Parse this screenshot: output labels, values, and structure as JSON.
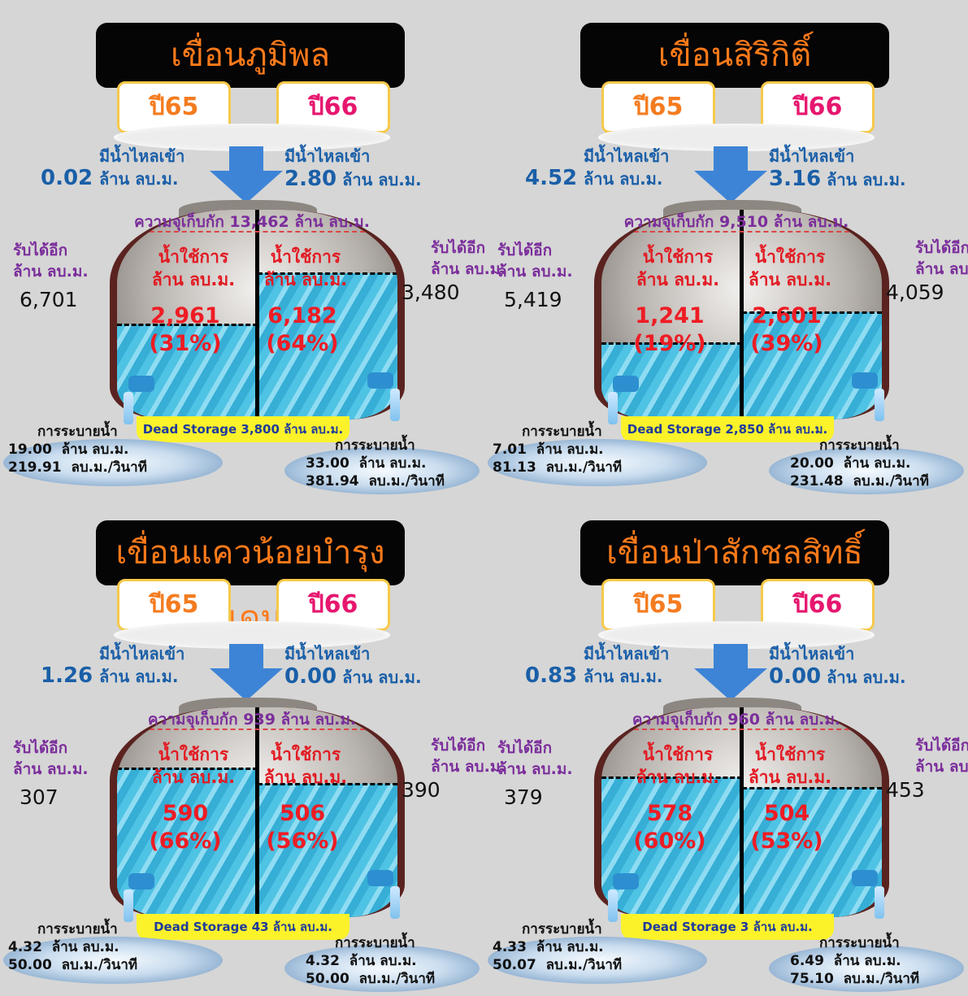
{
  "dams": [
    {
      "name": "เขื่อนภูมิพล",
      "year_left": "ปี65",
      "year_right": "ปี66",
      "inflow_label": "มีน้ำไหลเข้า",
      "unit": "ล้าน ลบ.ม.",
      "inflow_left": "0.02",
      "inflow_right": "2.80",
      "capacity_text": "ความจุเก็บกัก 13,462 ล้าน ลบ.ม.",
      "receive_label": "รับได้อีก",
      "receive_left": "6,701",
      "receive_right": "3,480",
      "use_label": "น้ำใช้การ",
      "use_left": "2,961",
      "pct_left": "(31%)",
      "use_right": "6,182",
      "pct_right": "(64%)",
      "level_left": 0.31,
      "level_right": 0.64,
      "dead_storage": "Dead Storage 3,800 ล้าน ลบ.ม.",
      "release_label": "การระบายน้ำ",
      "rate_unit": "ลบ.ม./วินาที",
      "release_left_volume": "19.00",
      "release_left_rate": "219.91",
      "release_right_volume": "33.00",
      "release_right_rate": "381.94"
    },
    {
      "name": "เขื่อนสิริกิติ์",
      "year_left": "ปี65",
      "year_right": "ปี66",
      "inflow_label": "มีน้ำไหลเข้า",
      "unit": "ล้าน ลบ.ม.",
      "inflow_left": "4.52",
      "inflow_right": "3.16",
      "capacity_text": "ความจุเก็บกัก 9,510 ล้าน ลบ.ม.",
      "receive_label": "รับได้อีก",
      "receive_left": "5,419",
      "receive_right": "4,059",
      "use_label": "น้ำใช้การ",
      "use_left": "1,241",
      "pct_left": "(19%)",
      "use_right": "2,601",
      "pct_right": "(39%)",
      "level_left": 0.19,
      "level_right": 0.39,
      "dead_storage": "Dead Storage 2,850 ล้าน ลบ.ม.",
      "release_label": "การระบายน้ำ",
      "rate_unit": "ลบ.ม./วินาที",
      "release_left_volume": "7.01",
      "release_left_rate": "81.13",
      "release_right_volume": "20.00",
      "release_right_rate": "231.48"
    },
    {
      "name": "เขื่อนแควน้อยบำรุงแดน",
      "year_left": "ปี65",
      "year_right": "ปี66",
      "inflow_label": "มีน้ำไหลเข้า",
      "unit": "ล้าน ลบ.ม.",
      "inflow_left": "1.26",
      "inflow_right": "0.00",
      "capacity_text": "ความจุเก็บกัก 939 ล้าน ลบ.ม.",
      "receive_label": "รับได้อีก",
      "receive_left": "307",
      "receive_right": "390",
      "use_label": "น้ำใช้การ",
      "use_left": "590",
      "pct_left": "(66%)",
      "use_right": "506",
      "pct_right": "(56%)",
      "level_left": 0.66,
      "level_right": 0.56,
      "dead_storage": "Dead Storage 43 ล้าน ลบ.ม.",
      "release_label": "การระบายน้ำ",
      "rate_unit": "ลบ.ม./วินาที",
      "release_left_volume": "4.32",
      "release_left_rate": "50.00",
      "release_right_volume": "4.32",
      "release_right_rate": "50.00"
    },
    {
      "name": "เขื่อนป่าสักชลสิทธิ์",
      "year_left": "ปี65",
      "year_right": "ปี66",
      "inflow_label": "มีน้ำไหลเข้า",
      "unit": "ล้าน ลบ.ม.",
      "inflow_left": "0.83",
      "inflow_right": "0.00",
      "capacity_text": "ความจุเก็บกัก 960 ล้าน ลบ.ม.",
      "receive_label": "รับได้อีก",
      "receive_left": "379",
      "receive_right": "453",
      "use_label": "น้ำใช้การ",
      "use_left": "578",
      "pct_left": "(60%)",
      "use_right": "504",
      "pct_right": "(53%)",
      "level_left": 0.6,
      "level_right": 0.53,
      "dead_storage": "Dead Storage 3 ล้าน ลบ.ม.",
      "release_label": "การระบายน้ำ",
      "rate_unit": "ลบ.ม./วินาที",
      "release_left_volume": "4.33",
      "release_left_rate": "50.07",
      "release_right_volume": "6.49",
      "release_right_rate": "75.10"
    }
  ],
  "colors": {
    "title_bg": "#050505",
    "title_text": "#ff7a1a",
    "year65": "#f47c20",
    "year66": "#e6176f",
    "inflow": "#1a5fa8",
    "purple": "#7b2e9b",
    "usage_red": "#ee1c24",
    "dead_storage_bg": "#fbf22a",
    "background": "#d6d6d6"
  }
}
